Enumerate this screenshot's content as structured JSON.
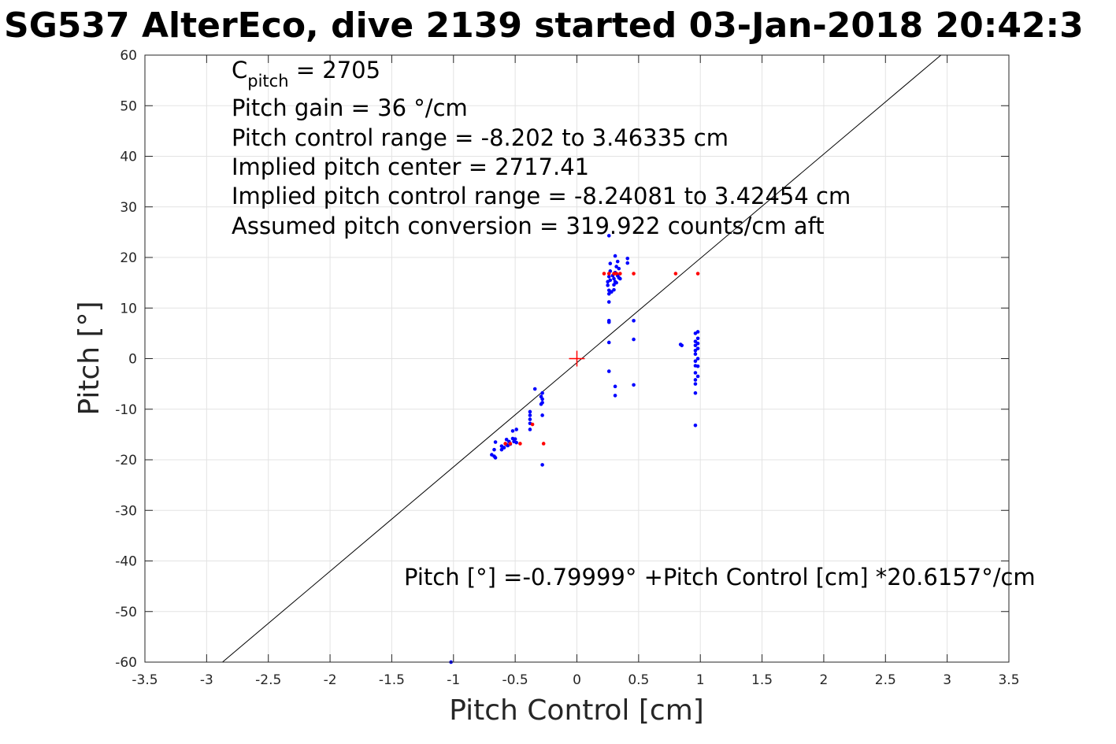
{
  "chart_data": {
    "type": "scatter",
    "title": "SG537 AlterEco, dive 2139 started 03-Jan-2018 20:42:3",
    "xlabel": "Pitch Control [cm]",
    "ylabel": "Pitch [°]",
    "xlim": [
      -3.5,
      3.5
    ],
    "ylim": [
      -60,
      60
    ],
    "xticks": [
      "-3.5",
      "-3",
      "-2.5",
      "-2",
      "-1.5",
      "-1",
      "-0.5",
      "0",
      "0.5",
      "1",
      "1.5",
      "2",
      "2.5",
      "3",
      "3.5"
    ],
    "yticks": [
      "60",
      "50",
      "40",
      "30",
      "20",
      "10",
      "0",
      "-10",
      "-20",
      "-30",
      "-40",
      "-50",
      "-60"
    ],
    "grid": true,
    "colors": {
      "blue": "#0000ff",
      "red": "#ff0000",
      "fit": "#000000"
    },
    "annotations": {
      "c_pitch_main": "C",
      "c_pitch_sub": "pitch",
      "c_pitch_value": " = 2705",
      "pitch_gain": "Pitch gain = 36 °/cm",
      "control_range": "Pitch control range = -8.202 to 3.46335 cm",
      "implied_center": "Implied pitch center = 2717.41",
      "implied_range": "Implied pitch control range = -8.24081 to 3.42454 cm",
      "conversion": "Assumed pitch conversion = 319.922 counts/cm aft",
      "fit_equation": "Pitch [°] =-0.79999° +Pitch Control [cm] *20.6157°/cm"
    },
    "fit_line": {
      "intercept": -0.79999,
      "slope": 20.6157
    },
    "center_marker": {
      "x": 0,
      "y": 0
    },
    "series": [
      {
        "color": "blue",
        "points": [
          [
            -0.69,
            -19.0
          ],
          [
            -0.67,
            -19.3
          ],
          [
            -0.66,
            -19.6
          ],
          [
            -0.67,
            -18.0
          ],
          [
            -0.66,
            -16.5
          ],
          [
            -0.61,
            -17.3
          ],
          [
            -0.61,
            -18.0
          ],
          [
            -0.59,
            -17.6
          ],
          [
            -0.57,
            -17.0
          ],
          [
            -0.57,
            -16.0
          ],
          [
            -0.56,
            -17.2
          ],
          [
            -0.55,
            -16.4
          ],
          [
            -0.54,
            -16.9
          ],
          [
            -0.52,
            -15.8
          ],
          [
            -0.52,
            -14.3
          ],
          [
            -0.51,
            -16.4
          ],
          [
            -0.5,
            -15.9
          ],
          [
            -0.49,
            -14.0
          ],
          [
            -0.49,
            -16.6
          ],
          [
            -0.38,
            -10.5
          ],
          [
            -0.38,
            -11.2
          ],
          [
            -0.38,
            -12.0
          ],
          [
            -0.38,
            -12.8
          ],
          [
            -0.38,
            -14.0
          ],
          [
            -0.34,
            -6.0
          ],
          [
            -0.29,
            -7.5
          ],
          [
            -0.28,
            -6.8
          ],
          [
            -0.28,
            -8.0
          ],
          [
            -0.28,
            -8.7
          ],
          [
            -0.29,
            -9.0
          ],
          [
            -0.28,
            -11.2
          ],
          [
            -0.28,
            -21.0
          ],
          [
            -1.02,
            -60.0
          ],
          [
            0.25,
            15.2
          ],
          [
            0.25,
            14.5
          ],
          [
            0.26,
            13.5
          ],
          [
            0.26,
            16.2
          ],
          [
            0.26,
            12.8
          ],
          [
            0.26,
            11.2
          ],
          [
            0.26,
            7.5
          ],
          [
            0.26,
            7.2
          ],
          [
            0.26,
            3.2
          ],
          [
            0.26,
            -2.5
          ],
          [
            0.26,
            24.3
          ],
          [
            0.27,
            18.8
          ],
          [
            0.27,
            17.3
          ],
          [
            0.27,
            15.5
          ],
          [
            0.28,
            13.2
          ],
          [
            0.29,
            16.4
          ],
          [
            0.3,
            15.8
          ],
          [
            0.3,
            14.6
          ],
          [
            0.3,
            13.6
          ],
          [
            0.31,
            20.3
          ],
          [
            0.31,
            17.0
          ],
          [
            0.31,
            15.2
          ],
          [
            0.32,
            18.2
          ],
          [
            0.32,
            16.8
          ],
          [
            0.32,
            15.0
          ],
          [
            0.33,
            16.4
          ],
          [
            0.33,
            19.2
          ],
          [
            0.34,
            17.8
          ],
          [
            0.34,
            16.0
          ],
          [
            0.35,
            15.8
          ],
          [
            0.31,
            -5.5
          ],
          [
            0.31,
            -7.3
          ],
          [
            0.41,
            19.8
          ],
          [
            0.41,
            18.9
          ],
          [
            0.46,
            7.5
          ],
          [
            0.46,
            3.8
          ],
          [
            0.46,
            -5.2
          ],
          [
            0.84,
            2.8
          ],
          [
            0.85,
            2.6
          ],
          [
            0.96,
            5.0
          ],
          [
            0.96,
            3.4
          ],
          [
            0.96,
            2.6
          ],
          [
            0.96,
            1.6
          ],
          [
            0.96,
            0.9
          ],
          [
            0.96,
            -0.5
          ],
          [
            0.96,
            -1.4
          ],
          [
            0.96,
            -2.8
          ],
          [
            0.96,
            -4.2
          ],
          [
            0.96,
            -5.0
          ],
          [
            0.96,
            -6.8
          ],
          [
            0.96,
            -13.2
          ],
          [
            0.98,
            5.3
          ],
          [
            0.98,
            4.0
          ],
          [
            0.98,
            3.0
          ],
          [
            0.98,
            2.0
          ],
          [
            0.98,
            0.0
          ],
          [
            0.98,
            -1.5
          ],
          [
            0.98,
            -3.5
          ]
        ]
      },
      {
        "color": "red",
        "points": [
          [
            -0.58,
            -16.8
          ],
          [
            -0.54,
            -16.8
          ],
          [
            -0.46,
            -16.8
          ],
          [
            -0.36,
            -13.0
          ],
          [
            -0.27,
            -16.8
          ],
          [
            0.22,
            16.8
          ],
          [
            0.26,
            16.8
          ],
          [
            0.3,
            16.8
          ],
          [
            0.32,
            16.8
          ],
          [
            0.35,
            16.8
          ],
          [
            0.46,
            16.8
          ],
          [
            0.8,
            16.8
          ],
          [
            0.98,
            16.8
          ]
        ]
      }
    ]
  }
}
